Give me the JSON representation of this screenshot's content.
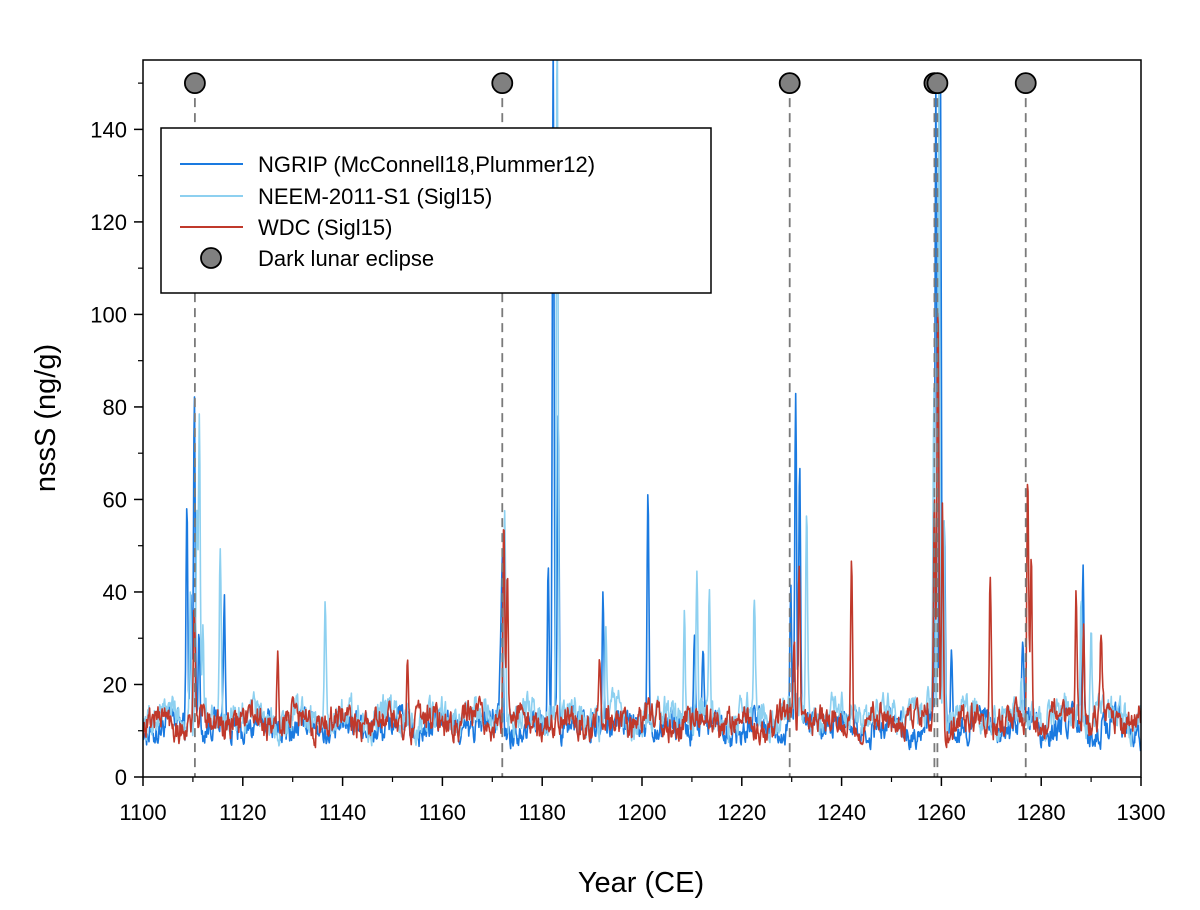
{
  "chart_data": {
    "type": "line",
    "xlabel": "Year (CE)",
    "ylabel": "nssS (ng/g)",
    "xlim": [
      1100,
      1300
    ],
    "ylim": [
      0,
      155
    ],
    "xticks": [
      1100,
      1120,
      1140,
      1160,
      1180,
      1200,
      1220,
      1240,
      1260,
      1280,
      1300
    ],
    "yticks": [
      0,
      20,
      40,
      60,
      80,
      100,
      120,
      140
    ],
    "grid": false,
    "legend_position": "top-left",
    "colors": {
      "ngrip": "#1a7ae0",
      "neem": "#8dd0f0",
      "wdc": "#c0392b",
      "eclipse_marker": "#808080"
    },
    "series": [
      {
        "name": "NGRIP (McConnell18,Plummer12)",
        "color": "#1a7ae0",
        "baseline": 11,
        "noise": 3.5,
        "peaks": [
          [
            1108.8,
            58
          ],
          [
            1109.6,
            40
          ],
          [
            1110.3,
            83
          ],
          [
            1111.2,
            35
          ],
          [
            1116.3,
            38
          ],
          [
            1171.6,
            25
          ],
          [
            1172.0,
            44
          ],
          [
            1181.2,
            45
          ],
          [
            1182.2,
            160
          ],
          [
            1183.2,
            80
          ],
          [
            1192.2,
            40
          ],
          [
            1201.2,
            63
          ],
          [
            1210.5,
            35
          ],
          [
            1212.2,
            30
          ],
          [
            1229.8,
            40
          ],
          [
            1230.8,
            81
          ],
          [
            1231.6,
            63
          ],
          [
            1258.9,
            150
          ],
          [
            1259.8,
            150
          ],
          [
            1260.6,
            55
          ],
          [
            1262.0,
            25
          ],
          [
            1276.3,
            24
          ],
          [
            1288.4,
            45
          ]
        ]
      },
      {
        "name": "NEEM-2011-S1 (Sigl15)",
        "color": "#8dd0f0",
        "baseline": 13,
        "noise": 4.0,
        "peaks": [
          [
            1109.5,
            38
          ],
          [
            1110.8,
            55
          ],
          [
            1111.3,
            75
          ],
          [
            1112.0,
            30
          ],
          [
            1115.5,
            50
          ],
          [
            1136.5,
            38
          ],
          [
            1172.5,
            57
          ],
          [
            1183.0,
            165
          ],
          [
            1192.8,
            30
          ],
          [
            1208.5,
            38
          ],
          [
            1211.0,
            45
          ],
          [
            1213.5,
            38
          ],
          [
            1222.5,
            38
          ],
          [
            1230.5,
            20
          ],
          [
            1233.0,
            58
          ],
          [
            1258.5,
            80
          ],
          [
            1259.5,
            155
          ],
          [
            1260.5,
            60
          ],
          [
            1276.0,
            22
          ],
          [
            1288.0,
            38
          ],
          [
            1290.0,
            30
          ]
        ]
      },
      {
        "name": "WDC (Sigl15)",
        "color": "#c0392b",
        "baseline": 12,
        "noise": 3.5,
        "peaks": [
          [
            1110.3,
            35
          ],
          [
            1127.0,
            27
          ],
          [
            1153.0,
            25
          ],
          [
            1172.3,
            57
          ],
          [
            1173.0,
            47
          ],
          [
            1191.5,
            25
          ],
          [
            1230.5,
            30
          ],
          [
            1231.5,
            50
          ],
          [
            1242.0,
            46
          ],
          [
            1258.6,
            60
          ],
          [
            1259.3,
            105
          ],
          [
            1260.2,
            60
          ],
          [
            1269.8,
            45
          ],
          [
            1277.3,
            64
          ],
          [
            1278.0,
            50
          ],
          [
            1287.0,
            40
          ],
          [
            1288.5,
            35
          ],
          [
            1292.0,
            30
          ]
        ]
      }
    ],
    "eclipses": {
      "name": "Dark lunar eclipse",
      "y": 150,
      "x": [
        1110.4,
        1172.0,
        1229.6,
        1258.6,
        1259.2,
        1276.9
      ]
    }
  }
}
